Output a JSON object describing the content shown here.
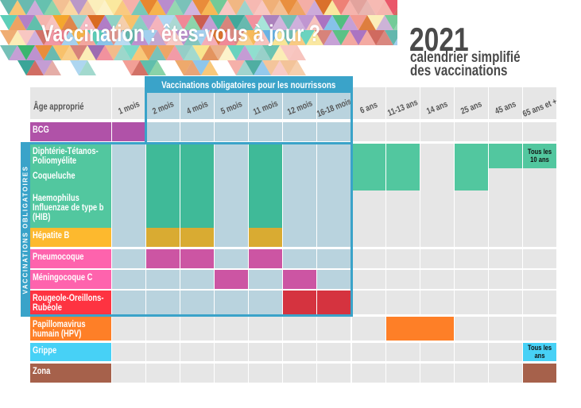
{
  "header": {
    "title": "Vaccination : êtes-vous à jour ?",
    "year": "2021",
    "subtitle_line1": "calendrier simplifié",
    "subtitle_line2": "des vaccinations"
  },
  "table": {
    "age_header": "Âge approprié",
    "mandatory_header": "Vaccinations obligatoires pour les nourrissons",
    "mandatory_side_label": "VACCINATIONS OBLIGATOIRES",
    "columns": [
      "1 mois",
      "2 mois",
      "4 mois",
      "5 mois",
      "11 mois",
      "12 mois",
      "16-18 mois",
      "6 ans",
      "11-13 ans",
      "14 ans",
      "25 ans",
      "45 ans",
      "65 ans et +"
    ],
    "mandatory_columns": [
      1,
      6
    ],
    "rows": [
      {
        "label": "BCG",
        "color": "#b052a8"
      },
      {
        "label": "Diphtérie-Tétanos-Poliomyélite",
        "color": "#52c79f"
      },
      {
        "label": "Coqueluche",
        "color": "#52c79f"
      },
      {
        "label": "Haemophilus Influenzae de type b (HIB)",
        "color": "#52c79f"
      },
      {
        "label": "Hépatite B",
        "color": "#fdb92e"
      },
      {
        "label": "Pneumocoque",
        "color": "#fe63ad"
      },
      {
        "label": "Méningocoque C",
        "color": "#fe63ad"
      },
      {
        "label": "Rougeole-Oreillons-Rubéole",
        "color": "#fe3341"
      },
      {
        "label": "Papillomavirus humain (HPV)",
        "color": "#fe7f27"
      },
      {
        "label": "Grippe",
        "color": "#47d1f6"
      },
      {
        "label": "Zona",
        "color": "#a6614b"
      }
    ],
    "marks": [
      {
        "row": 0,
        "rows": 1,
        "col": 0,
        "cols": 1,
        "color": "#b052a8",
        "text": ""
      },
      {
        "row": 1,
        "rows": 3,
        "col": 1,
        "cols": 1,
        "color": "#3fba98",
        "text": ""
      },
      {
        "row": 1,
        "rows": 3,
        "col": 2,
        "cols": 1,
        "color": "#3fba98",
        "text": ""
      },
      {
        "row": 1,
        "rows": 3,
        "col": 4,
        "cols": 1,
        "color": "#3fba98",
        "text": ""
      },
      {
        "row": 1,
        "rows": 2,
        "col": 7,
        "cols": 1,
        "color": "#52c79f",
        "text": ""
      },
      {
        "row": 1,
        "rows": 2,
        "col": 8,
        "cols": 1,
        "color": "#52c79f",
        "text": ""
      },
      {
        "row": 1,
        "rows": 2,
        "col": 10,
        "cols": 1,
        "color": "#52c79f",
        "text": ""
      },
      {
        "row": 1,
        "rows": 1,
        "col": 11,
        "cols": 1,
        "color": "#52c79f",
        "text": ""
      },
      {
        "row": 1,
        "rows": 1,
        "col": 12,
        "cols": 1,
        "color": "#52c79f",
        "text": "Tous les 10 ans"
      },
      {
        "row": 4,
        "rows": 1,
        "col": 1,
        "cols": 1,
        "color": "#d9ab32",
        "text": ""
      },
      {
        "row": 4,
        "rows": 1,
        "col": 2,
        "cols": 1,
        "color": "#d9ab32",
        "text": ""
      },
      {
        "row": 4,
        "rows": 1,
        "col": 4,
        "cols": 1,
        "color": "#d9ab32",
        "text": ""
      },
      {
        "row": 5,
        "rows": 1,
        "col": 1,
        "cols": 1,
        "color": "#cc55a3",
        "text": ""
      },
      {
        "row": 5,
        "rows": 1,
        "col": 2,
        "cols": 1,
        "color": "#cc55a3",
        "text": ""
      },
      {
        "row": 5,
        "rows": 1,
        "col": 4,
        "cols": 1,
        "color": "#cc55a3",
        "text": ""
      },
      {
        "row": 6,
        "rows": 1,
        "col": 3,
        "cols": 1,
        "color": "#cc55a3",
        "text": ""
      },
      {
        "row": 6,
        "rows": 1,
        "col": 5,
        "cols": 1,
        "color": "#cc55a3",
        "text": ""
      },
      {
        "row": 7,
        "rows": 1,
        "col": 5,
        "cols": 1,
        "color": "#d5333f",
        "text": ""
      },
      {
        "row": 7,
        "rows": 1,
        "col": 6,
        "cols": 1,
        "color": "#d5333f",
        "text": ""
      },
      {
        "row": 8,
        "rows": 1,
        "col": 8,
        "cols": 2,
        "color": "#fe7f27",
        "text": ""
      },
      {
        "row": 9,
        "rows": 1,
        "col": 12,
        "cols": 1,
        "color": "#47d1f6",
        "text": "Tous les ans"
      },
      {
        "row": 10,
        "rows": 1,
        "col": 12,
        "cols": 1,
        "color": "#a6614b",
        "text": ""
      }
    ]
  },
  "colors": {
    "mandatory_blue": "#3aa3c9",
    "mandatory_cell": "#b9d3de",
    "cell": "#e6e6e6",
    "title_gray": "#4a4a4a"
  }
}
